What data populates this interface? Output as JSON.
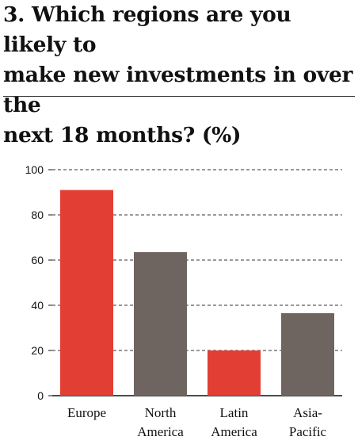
{
  "title_lines": [
    "3. Which regions are you likely to",
    "make new investments in over the",
    "next 18 months? (%)"
  ],
  "chart_data": {
    "type": "bar",
    "title": "3. Which regions are you likely to make new investments in over the next 18 months? (%)",
    "categories": [
      [
        "Europe"
      ],
      [
        "North",
        "America"
      ],
      [
        "Latin",
        "America"
      ],
      [
        "Asia-",
        "Pacific"
      ]
    ],
    "values": [
      91,
      63.5,
      20,
      36.5
    ],
    "colors": [
      "#e33e33",
      "#6e6560",
      "#e33e33",
      "#6e6560"
    ],
    "ylim": [
      0,
      100
    ],
    "yticks": [
      0,
      20,
      40,
      60,
      80,
      100
    ],
    "grid": true,
    "xlabel": "",
    "ylabel": ""
  }
}
